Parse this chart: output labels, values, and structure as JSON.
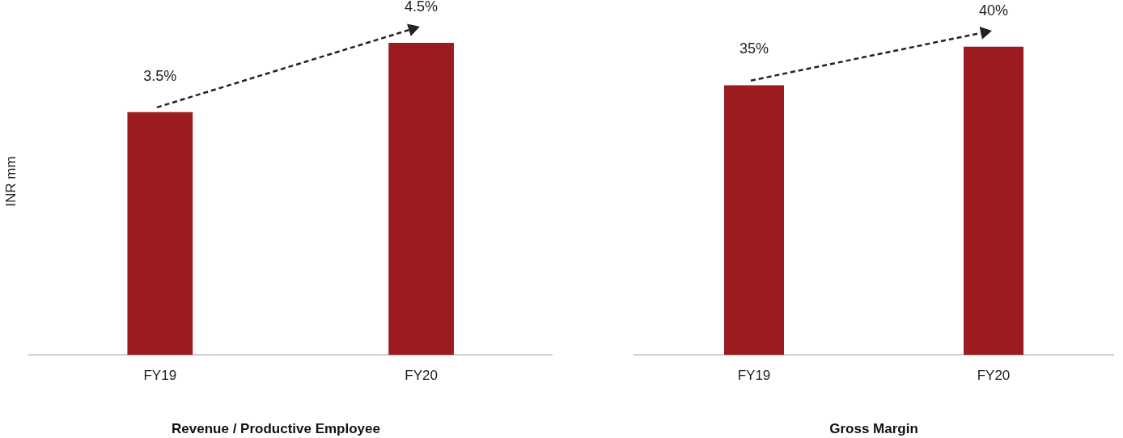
{
  "chart_data": [
    {
      "type": "bar",
      "title": "Revenue / Productive Employee",
      "ylabel": "INR mm",
      "categories": [
        "FY19",
        "FY20"
      ],
      "values": [
        3.5,
        4.5
      ],
      "value_labels": [
        "3.5%",
        "4.5%"
      ],
      "color": "#9b1b20",
      "grid": false,
      "legend": false
    },
    {
      "type": "bar",
      "title": "Gross Margin",
      "categories": [
        "FY19",
        "FY20"
      ],
      "values": [
        35,
        40
      ],
      "value_labels": [
        "35%",
        "40%"
      ],
      "color": "#9b1b20",
      "grid": false,
      "legend": false
    }
  ]
}
